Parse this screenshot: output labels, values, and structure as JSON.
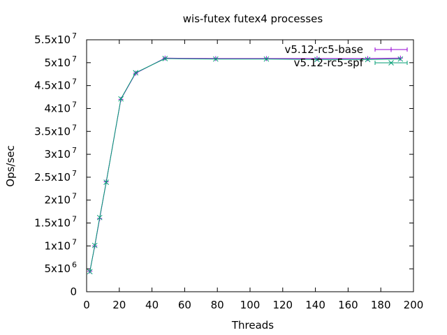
{
  "chart_data": {
    "type": "line",
    "title": "wis-futex futex4 processes",
    "xlabel": "Threads",
    "ylabel": "Ops/sec",
    "xlim": [
      0,
      200
    ],
    "ylim": [
      0,
      55000000
    ],
    "grid": false,
    "legend_position": "top-right",
    "x_ticks": [
      "0",
      "20",
      "40",
      "60",
      "80",
      "100",
      "120",
      "140",
      "160",
      "180",
      "200"
    ],
    "y_ticks": [
      {
        "value": 0,
        "mantissa": "0",
        "exp": ""
      },
      {
        "value": 5000000,
        "mantissa": "5x10",
        "exp": "6"
      },
      {
        "value": 10000000,
        "mantissa": "1x10",
        "exp": "7"
      },
      {
        "value": 15000000,
        "mantissa": "1.5x10",
        "exp": "7"
      },
      {
        "value": 20000000,
        "mantissa": "2x10",
        "exp": "7"
      },
      {
        "value": 25000000,
        "mantissa": "2.5x10",
        "exp": "7"
      },
      {
        "value": 30000000,
        "mantissa": "3x10",
        "exp": "7"
      },
      {
        "value": 35000000,
        "mantissa": "3.5x10",
        "exp": "7"
      },
      {
        "value": 40000000,
        "mantissa": "4x10",
        "exp": "7"
      },
      {
        "value": 45000000,
        "mantissa": "4.5x10",
        "exp": "7"
      },
      {
        "value": 50000000,
        "mantissa": "5x10",
        "exp": "7"
      },
      {
        "value": 55000000,
        "mantissa": "5.5x10",
        "exp": "7"
      }
    ],
    "x": [
      2,
      5,
      8,
      12,
      21,
      30,
      48,
      79,
      110,
      141,
      172,
      192
    ],
    "series": [
      {
        "name": "v5.12-rc5-base",
        "color": "#9400d3",
        "marker": "plus",
        "values": [
          4500000,
          10000000,
          16000000,
          24000000,
          42000000,
          47700000,
          51000000,
          50900000,
          50900000,
          50900000,
          50900000,
          51000000
        ]
      },
      {
        "name": "v5.12-rc5-spf",
        "color": "#009e73",
        "marker": "x",
        "values": [
          4400000,
          10100000,
          16200000,
          23900000,
          42100000,
          47800000,
          50900000,
          50800000,
          50800000,
          50700000,
          50700000,
          50800000
        ]
      }
    ]
  }
}
